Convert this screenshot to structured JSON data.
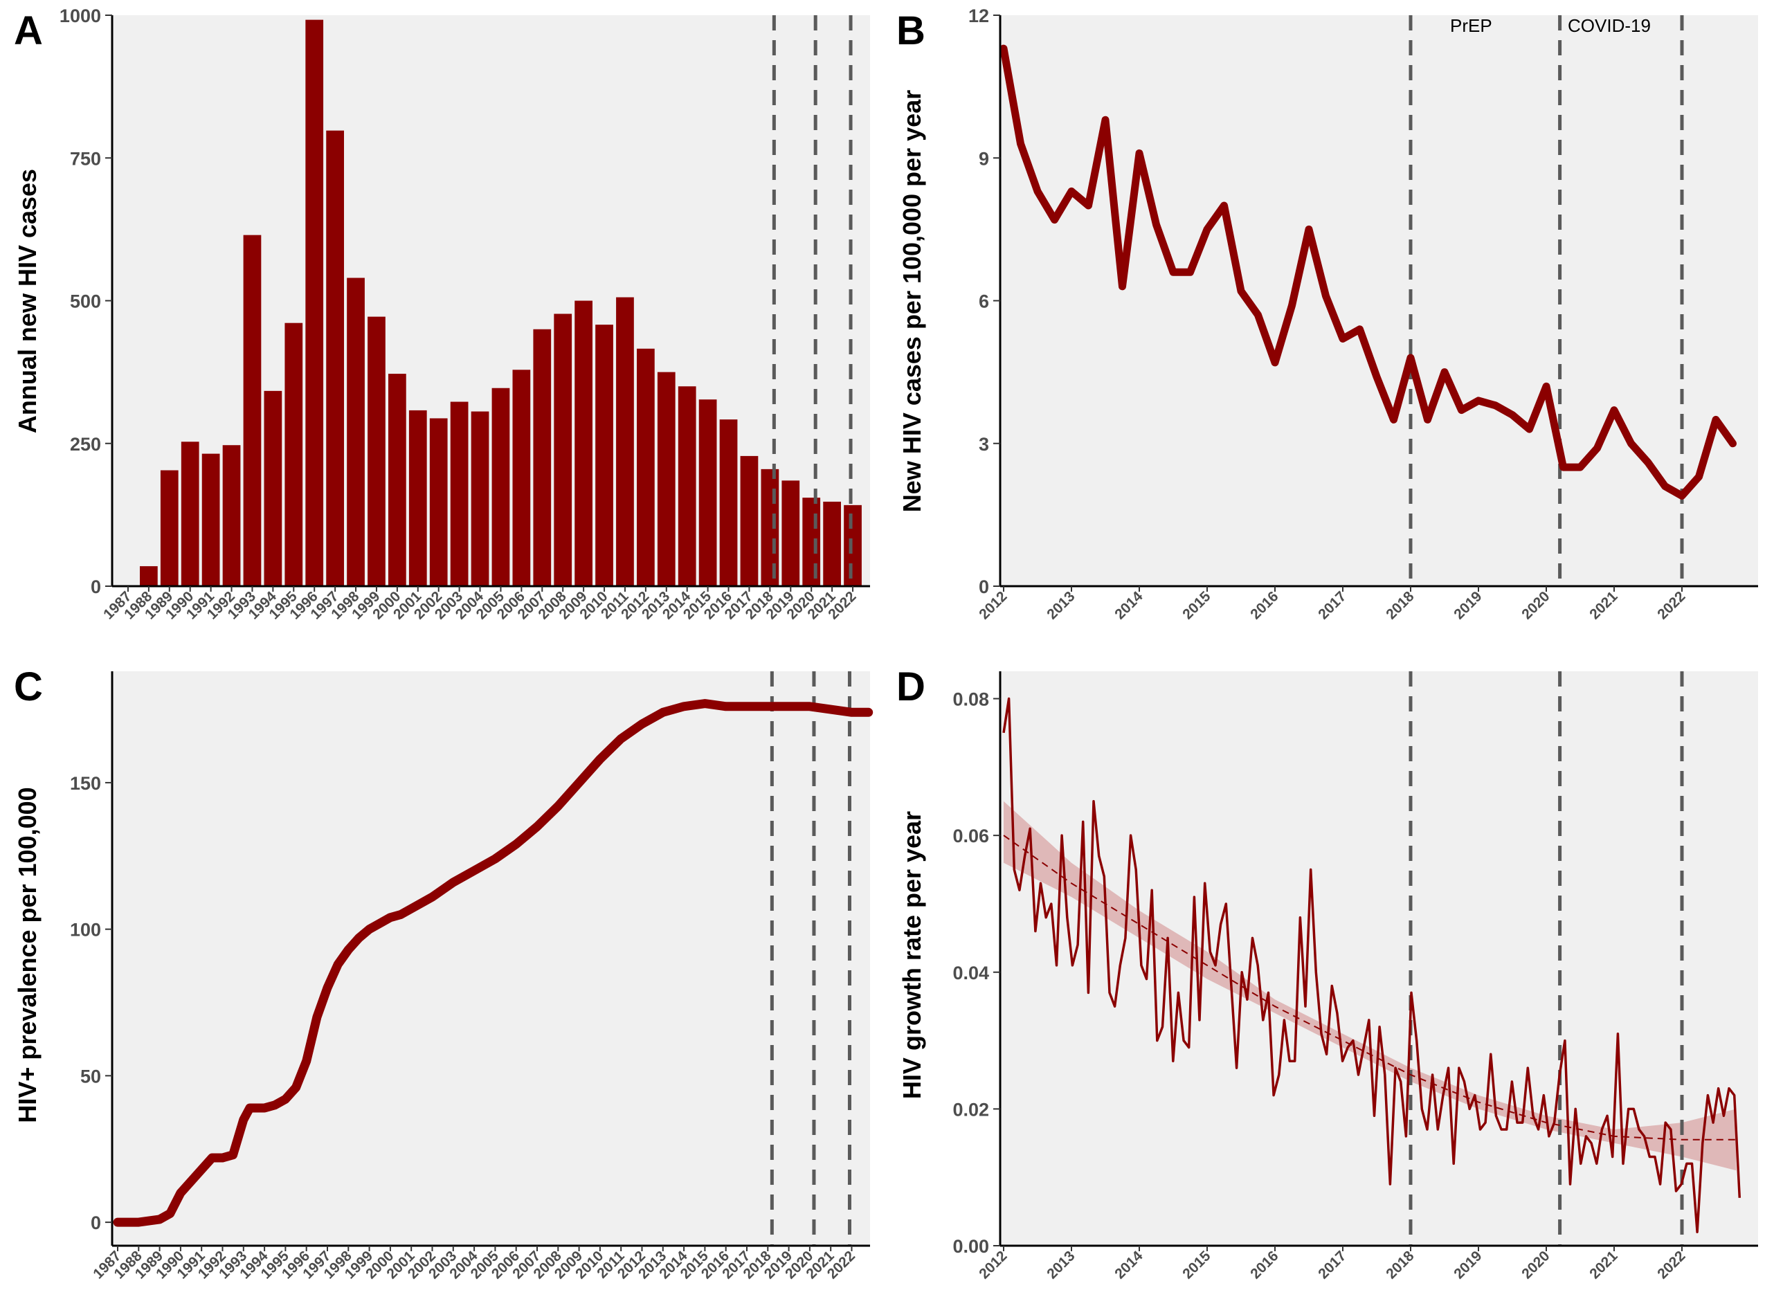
{
  "colors": {
    "series": "#8b0000",
    "panel_bg": "#f0f0f0",
    "vline": "#5a5a5a",
    "ribbon": "#d9a6a6",
    "tick_text": "#4d4d4d"
  },
  "chart_data": [
    {
      "panel": "A",
      "type": "bar",
      "ylabel": "Annual new HIV cases",
      "ylim": [
        0,
        1000
      ],
      "yticks": [
        0,
        250,
        500,
        750,
        1000
      ],
      "categories": [
        "1987",
        "1988",
        "1989",
        "1990",
        "1991",
        "1992",
        "1993",
        "1994",
        "1995",
        "1996",
        "1997",
        "1998",
        "1999",
        "2000",
        "2001",
        "2002",
        "2003",
        "2004",
        "2005",
        "2006",
        "2007",
        "2008",
        "2009",
        "2010",
        "2011",
        "2012",
        "2013",
        "2014",
        "2015",
        "2016",
        "2017",
        "2018",
        "2019",
        "2020",
        "2021",
        "2022"
      ],
      "values": [
        0,
        35,
        203,
        253,
        232,
        247,
        615,
        342,
        461,
        992,
        798,
        540,
        472,
        372,
        308,
        294,
        323,
        306,
        347,
        379,
        450,
        477,
        500,
        458,
        506,
        416,
        375,
        350,
        327,
        292,
        228,
        205,
        185,
        155,
        148,
        142
      ],
      "vlines": [
        2018.2,
        2020.2,
        2021.9
      ],
      "grid": false
    },
    {
      "panel": "B",
      "type": "line",
      "ylabel": "New HIV cases per 100,000 per year",
      "ylim": [
        0,
        12
      ],
      "yticks": [
        0,
        3,
        6,
        9,
        12
      ],
      "xlim": [
        2012,
        2023
      ],
      "xticks": [
        "2012",
        "2013",
        "2014",
        "2015",
        "2016",
        "2017",
        "2018",
        "2019",
        "2020",
        "2021",
        "2022"
      ],
      "x": [
        2012.0,
        2012.25,
        2012.5,
        2012.75,
        2013.0,
        2013.25,
        2013.5,
        2013.75,
        2014.0,
        2014.25,
        2014.5,
        2014.75,
        2015.0,
        2015.25,
        2015.5,
        2015.75,
        2016.0,
        2016.25,
        2016.5,
        2016.75,
        2017.0,
        2017.25,
        2017.5,
        2017.75,
        2018.0,
        2018.25,
        2018.5,
        2018.75,
        2019.0,
        2019.25,
        2019.5,
        2019.75,
        2020.0,
        2020.25,
        2020.5,
        2020.75,
        2021.0,
        2021.25,
        2021.5,
        2021.75,
        2022.0,
        2022.25,
        2022.5,
        2022.75
      ],
      "y": [
        11.3,
        9.3,
        8.3,
        7.7,
        8.3,
        8.0,
        9.8,
        6.3,
        9.1,
        7.6,
        6.6,
        6.6,
        7.5,
        8.0,
        6.2,
        5.7,
        4.7,
        5.9,
        7.5,
        6.1,
        5.2,
        5.4,
        4.4,
        3.5,
        4.8,
        3.5,
        4.5,
        3.7,
        3.9,
        3.8,
        3.6,
        3.3,
        4.2,
        2.5,
        2.5,
        2.9,
        3.7,
        3.0,
        2.6,
        2.1,
        1.9,
        2.3,
        3.5,
        3.0
      ],
      "vlines": [
        2018.0,
        2020.2,
        2022.0
      ],
      "annotations": [
        {
          "text": "PrEP",
          "x": 2018.0
        },
        {
          "text": "COVID-19",
          "x": 2020.2
        }
      ],
      "grid": false
    },
    {
      "panel": "C",
      "type": "line",
      "ylabel": "HIV+ prevalence per 100,000",
      "ylim": [
        -8,
        188
      ],
      "yticks": [
        0,
        50,
        100,
        150
      ],
      "xlim": [
        1987,
        2023
      ],
      "xticks": [
        "1987",
        "1988",
        "1989",
        "1990",
        "1991",
        "1992",
        "1993",
        "1994",
        "1995",
        "1996",
        "1997",
        "1998",
        "1999",
        "2000",
        "2001",
        "2002",
        "2003",
        "2004",
        "2005",
        "2006",
        "2007",
        "2008",
        "2009",
        "2010",
        "2011",
        "2012",
        "2013",
        "2014",
        "2015",
        "2016",
        "2017",
        "2018",
        "2019",
        "2020",
        "2021",
        "2022"
      ],
      "x": [
        1987,
        1988,
        1989,
        1989.5,
        1990,
        1990.5,
        1991,
        1991.5,
        1992,
        1992.5,
        1993,
        1993.3,
        1993.6,
        1994,
        1994.5,
        1995,
        1995.5,
        1996,
        1996.5,
        1997,
        1997.5,
        1998,
        1998.5,
        1999,
        1999.5,
        2000,
        2000.5,
        2001,
        2002,
        2003,
        2004,
        2005,
        2006,
        2007,
        2008,
        2009,
        2010,
        2011,
        2012,
        2013,
        2014,
        2015,
        2016,
        2017,
        2018,
        2019,
        2020,
        2021,
        2022,
        2022.8
      ],
      "y": [
        0,
        0,
        1,
        3,
        10,
        14,
        18,
        22,
        22,
        23,
        35,
        39,
        39,
        39,
        40,
        42,
        46,
        55,
        70,
        80,
        88,
        93,
        97,
        100,
        102,
        104,
        105,
        107,
        111,
        116,
        120,
        124,
        129,
        135,
        142,
        150,
        158,
        165,
        170,
        174,
        176,
        177,
        176,
        176,
        176,
        176,
        176,
        175,
        174,
        174
      ],
      "vlines": [
        2018.2,
        2020.2,
        2021.9
      ],
      "grid": false
    },
    {
      "panel": "D",
      "type": "line",
      "ylabel": "HIV growth rate per year",
      "ylim": [
        0,
        0.084
      ],
      "yticks": [
        0.0,
        0.02,
        0.04,
        0.06,
        0.08
      ],
      "ytick_labels": [
        "0.00",
        "0.02",
        "0.04",
        "0.06",
        "0.08"
      ],
      "xlim": [
        2012,
        2023
      ],
      "xticks": [
        "2012",
        "2013",
        "2014",
        "2015",
        "2016",
        "2017",
        "2018",
        "2019",
        "2020",
        "2021",
        "2022"
      ],
      "series": [
        {
          "name": "",
          "style": "solid",
          "y": [
            0.075,
            0.08,
            0.055,
            0.052,
            0.057,
            0.061,
            0.046,
            0.053,
            0.048,
            0.05,
            0.041,
            0.06,
            0.048,
            0.041,
            0.044,
            0.062,
            0.037,
            0.065,
            0.057,
            0.054,
            0.037,
            0.035,
            0.041,
            0.045,
            0.06,
            0.055,
            0.041,
            0.039,
            0.052,
            0.03,
            0.032,
            0.045,
            0.027,
            0.037,
            0.03,
            0.029,
            0.051,
            0.033,
            0.053,
            0.043,
            0.041,
            0.047,
            0.05,
            0.038,
            0.026,
            0.04,
            0.036,
            0.045,
            0.041,
            0.033,
            0.037,
            0.022,
            0.025,
            0.033,
            0.027,
            0.027,
            0.048,
            0.035,
            0.055,
            0.04,
            0.031,
            0.028,
            0.038,
            0.034,
            0.027,
            0.029,
            0.03,
            0.025,
            0.029,
            0.033,
            0.019,
            0.032,
            0.025,
            0.009,
            0.026,
            0.024,
            0.016,
            0.037,
            0.03,
            0.02,
            0.017,
            0.025,
            0.017,
            0.022,
            0.026,
            0.012,
            0.026,
            0.024,
            0.02,
            0.022,
            0.017,
            0.018,
            0.028,
            0.019,
            0.017,
            0.017,
            0.024,
            0.018,
            0.018,
            0.026,
            0.019,
            0.017,
            0.022,
            0.016,
            0.018,
            0.025,
            0.03,
            0.009,
            0.02,
            0.012,
            0.016,
            0.015,
            0.012,
            0.017,
            0.019,
            0.013,
            0.031,
            0.012,
            0.02,
            0.02,
            0.017,
            0.016,
            0.013,
            0.013,
            0.009,
            0.018,
            0.017,
            0.008,
            0.009,
            0.012,
            0.012,
            0.002,
            0.015,
            0.022,
            0.018,
            0.023,
            0.019,
            0.023,
            0.022,
            0.007
          ]
        },
        {
          "name": "",
          "style": "dashed-trend",
          "x": [
            2012,
            2013,
            2014,
            2015,
            2016,
            2017,
            2018,
            2019,
            2020,
            2021,
            2022,
            2022.8
          ],
          "y": [
            0.06,
            0.053,
            0.047,
            0.041,
            0.035,
            0.03,
            0.025,
            0.021,
            0.018,
            0.016,
            0.0155,
            0.0155
          ],
          "lower": [
            0.056,
            0.051,
            0.045,
            0.039,
            0.034,
            0.029,
            0.024,
            0.02,
            0.017,
            0.015,
            0.013,
            0.011
          ],
          "upper": [
            0.065,
            0.056,
            0.049,
            0.043,
            0.036,
            0.031,
            0.026,
            0.022,
            0.019,
            0.017,
            0.018,
            0.02
          ]
        }
      ],
      "vlines": [
        2018.0,
        2020.2,
        2022.0
      ],
      "grid": false
    }
  ]
}
